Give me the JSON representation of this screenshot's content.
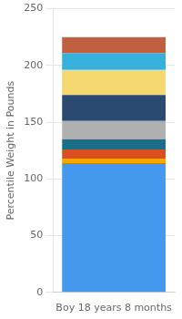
{
  "chart_data": {
    "type": "bar",
    "categories": [
      "Boy 18 years 8 months"
    ],
    "ylabel": "Percentile Weight in Pounds",
    "stacked": true,
    "series": [
      {
        "color": "#4499EE",
        "values": [
          114
        ]
      },
      {
        "color": "#F5A800",
        "values": [
          4
        ]
      },
      {
        "color": "#D94F1E",
        "values": [
          8
        ]
      },
      {
        "color": "#1A6E8A",
        "values": [
          9
        ]
      },
      {
        "color": "#B0B0B0",
        "values": [
          16
        ]
      },
      {
        "color": "#2B4A72",
        "values": [
          23
        ]
      },
      {
        "color": "#F5D970",
        "values": [
          22
        ]
      },
      {
        "color": "#38B0DC",
        "values": [
          15
        ]
      },
      {
        "color": "#C06040",
        "values": [
          14
        ]
      }
    ],
    "ylim": [
      0,
      250
    ],
    "yticks": [
      0,
      50,
      100,
      150,
      200,
      250
    ],
    "grid": true
  }
}
